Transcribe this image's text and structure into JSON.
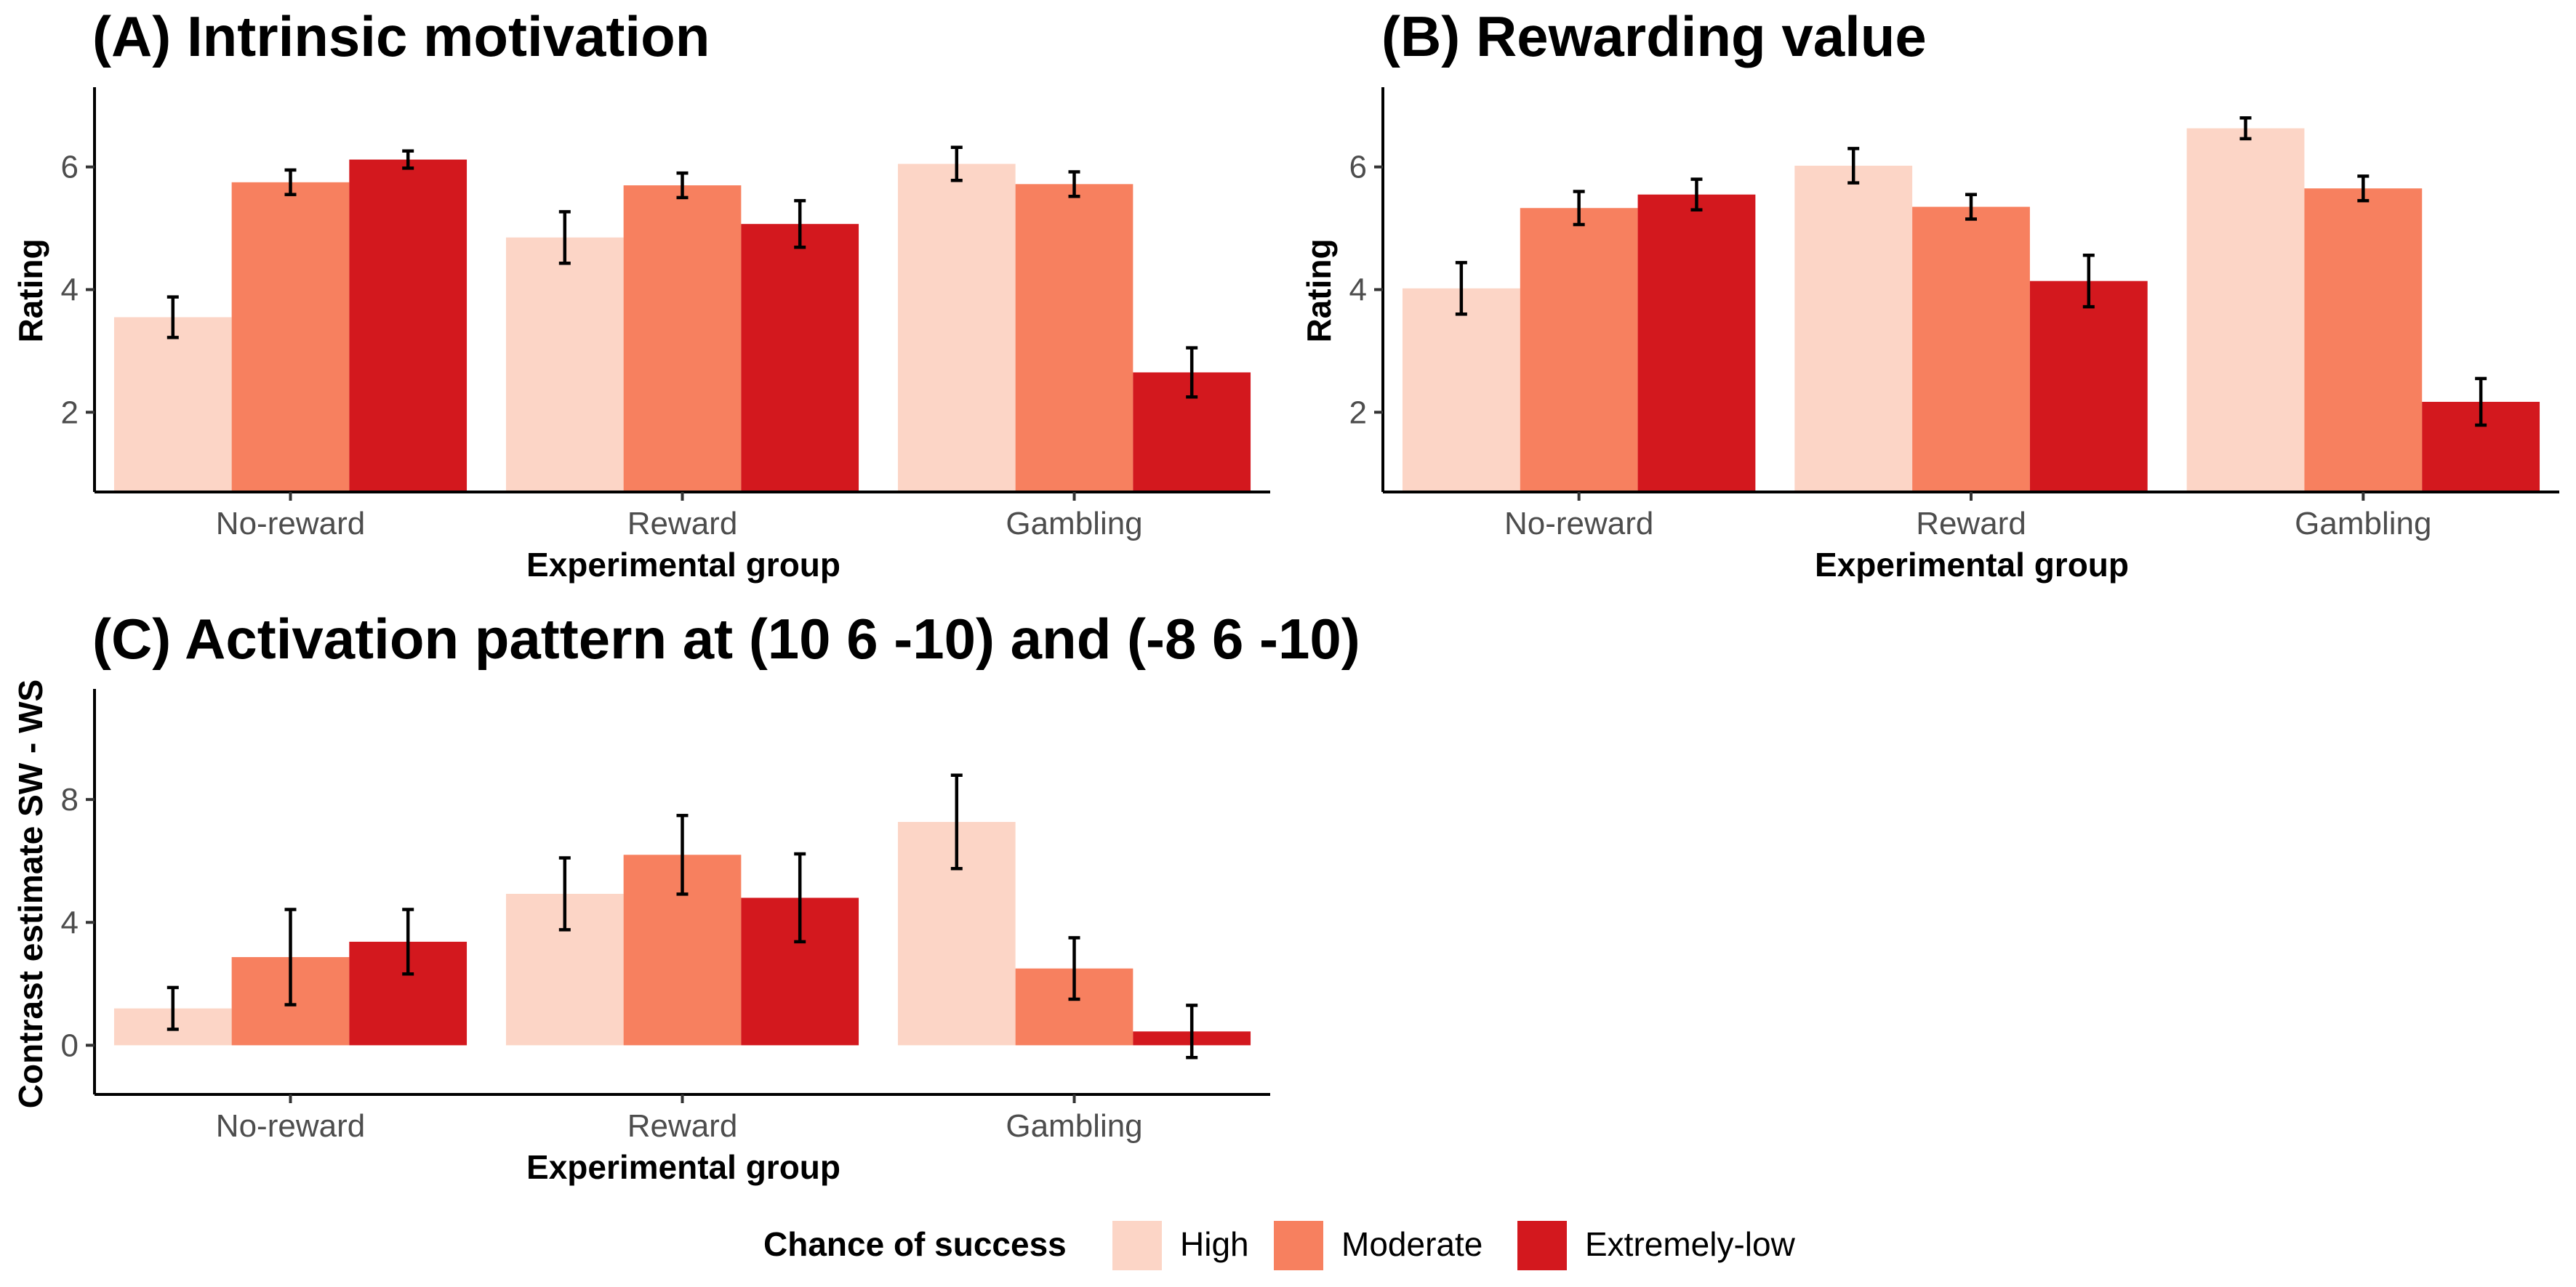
{
  "chart_data": [
    {
      "type": "bar",
      "title": "(A) Intrinsic motivation",
      "xlabel": "Experimental group",
      "ylabel": "Rating",
      "categories": [
        "No-reward",
        "Reward",
        "Gambling"
      ],
      "ylim": [
        0.7,
        7.3
      ],
      "yticks": [
        2,
        4,
        6
      ],
      "baseline": 0.7,
      "series": [
        {
          "name": "High",
          "color": "#fcd5c6",
          "values": [
            3.55,
            4.85,
            6.05
          ],
          "err": [
            0.33,
            0.42,
            0.27
          ]
        },
        {
          "name": "Moderate",
          "color": "#f7805f",
          "values": [
            5.75,
            5.7,
            5.72
          ],
          "err": [
            0.2,
            0.2,
            0.2
          ]
        },
        {
          "name": "Extremely-low",
          "color": "#d3181e",
          "values": [
            6.12,
            5.07,
            2.65
          ],
          "err": [
            0.14,
            0.38,
            0.4
          ]
        }
      ]
    },
    {
      "type": "bar",
      "title": "(B) Rewarding value",
      "xlabel": "Experimental group",
      "ylabel": "Rating",
      "categories": [
        "No-reward",
        "Reward",
        "Gambling"
      ],
      "ylim": [
        0.7,
        7.3
      ],
      "yticks": [
        2,
        4,
        6
      ],
      "baseline": 0.7,
      "series": [
        {
          "name": "High",
          "color": "#fcd5c6",
          "values": [
            4.02,
            6.02,
            6.63
          ],
          "err": [
            0.42,
            0.28,
            0.17
          ]
        },
        {
          "name": "Moderate",
          "color": "#f7805f",
          "values": [
            5.33,
            5.35,
            5.65
          ],
          "err": [
            0.27,
            0.2,
            0.2
          ]
        },
        {
          "name": "Extremely-low",
          "color": "#d3181e",
          "values": [
            5.55,
            4.14,
            2.17
          ],
          "err": [
            0.25,
            0.42,
            0.38
          ]
        }
      ]
    },
    {
      "type": "bar",
      "title": "(C) Activation pattern at (10 6 -10) and (-8 6 -10)",
      "xlabel": "Experimental group",
      "ylabel": "Contrast estimate SW - WS",
      "categories": [
        "No-reward",
        "Reward",
        "Gambling"
      ],
      "ylim": [
        -1.6,
        11.6
      ],
      "yticks": [
        0,
        4,
        8
      ],
      "baseline": 0,
      "series": [
        {
          "name": "High",
          "color": "#fcd5c6",
          "values": [
            1.2,
            4.93,
            7.27
          ],
          "err": [
            0.68,
            1.17,
            1.52
          ]
        },
        {
          "name": "Moderate",
          "color": "#f7805f",
          "values": [
            2.87,
            6.2,
            2.5
          ],
          "err": [
            1.55,
            1.28,
            1.0
          ]
        },
        {
          "name": "Extremely-low",
          "color": "#d3181e",
          "values": [
            3.37,
            4.8,
            0.45
          ],
          "err": [
            1.05,
            1.43,
            0.85
          ]
        }
      ]
    }
  ],
  "legend": {
    "title": "Chance of success",
    "position": "bottom",
    "items": [
      {
        "label": "High",
        "color": "#fcd5c6"
      },
      {
        "label": "Moderate",
        "color": "#f7805f"
      },
      {
        "label": "Extremely-low",
        "color": "#d3181e"
      }
    ]
  }
}
